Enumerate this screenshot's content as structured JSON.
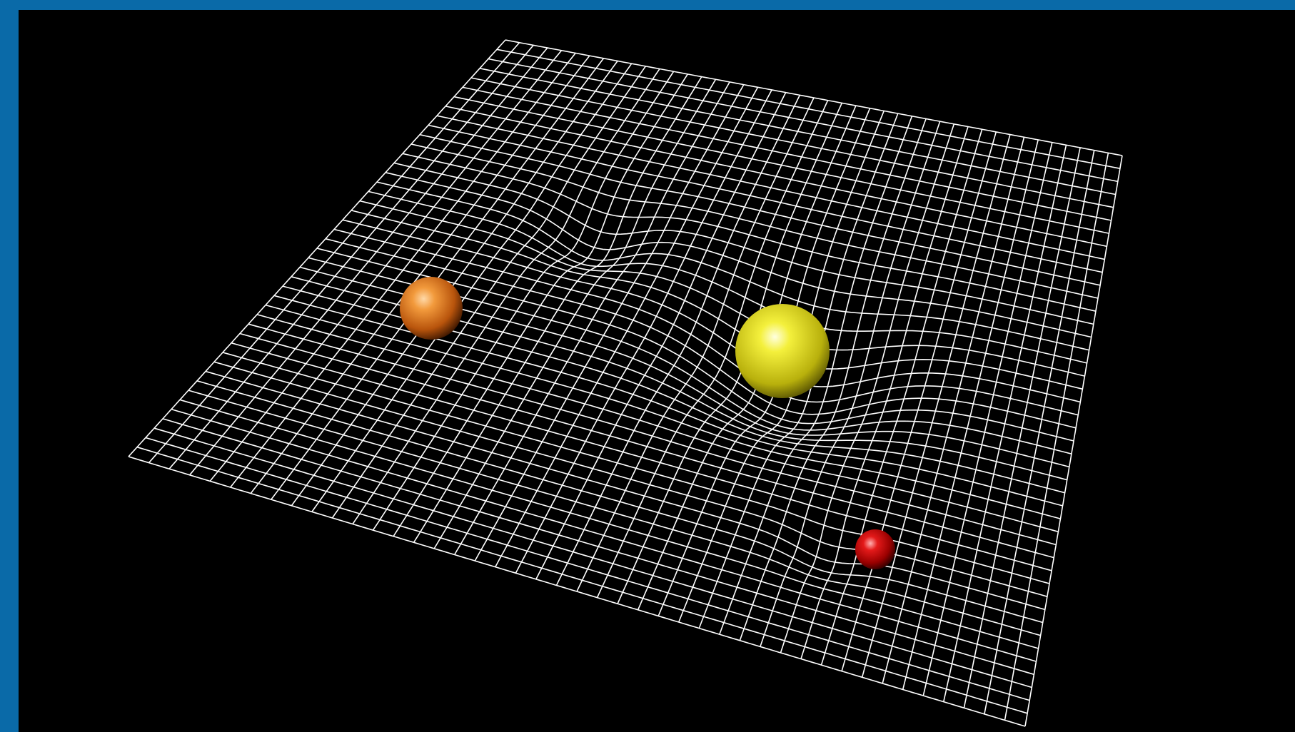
{
  "scene": {
    "background_color": "#000000",
    "border_color": "#0a6aa8",
    "grid_line_color": "#ffffff",
    "grid_divisions": 44
  },
  "bodies": [
    {
      "name": "orange-sphere",
      "color": "#e87a1a",
      "highlight": "#ffd09a",
      "shade": "#5a2400"
    },
    {
      "name": "yellow-sphere",
      "color": "#e6e21a",
      "highlight": "#ffffd0",
      "shade": "#6a6400"
    },
    {
      "name": "red-sphere",
      "color": "#d40a0a",
      "highlight": "#ff9a9a",
      "shade": "#4a0000"
    }
  ]
}
